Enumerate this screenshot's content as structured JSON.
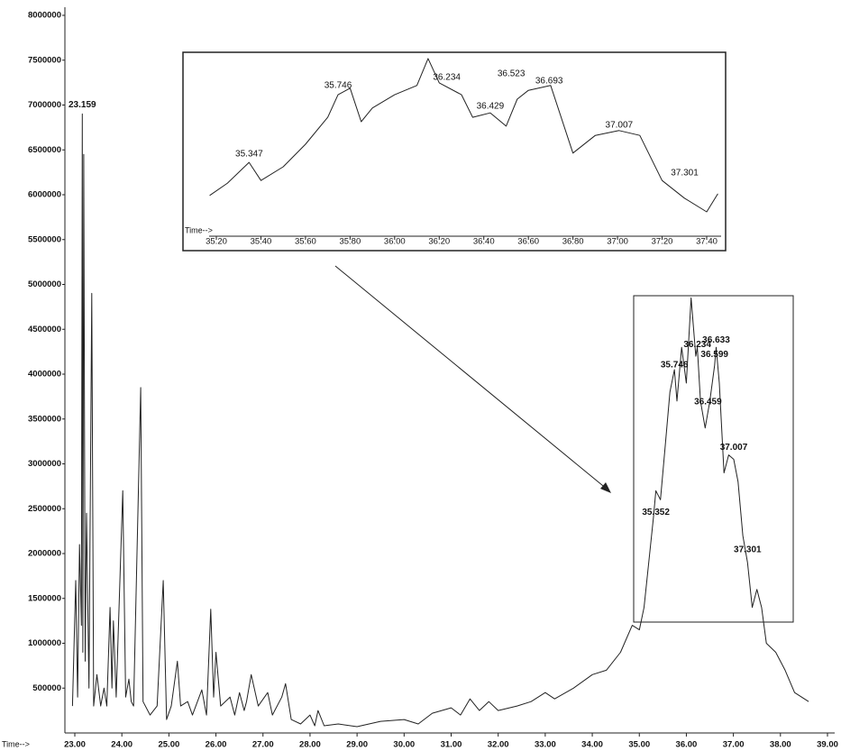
{
  "chart_data": [
    {
      "type": "line",
      "x_label": "Time-->",
      "x": [
        22.95,
        23.02,
        23.06,
        23.1,
        23.14,
        23.159,
        23.17,
        23.19,
        23.22,
        23.25,
        23.3,
        23.36,
        23.4,
        23.47,
        23.55,
        23.62,
        23.68,
        23.75,
        23.79,
        23.82,
        23.88,
        24.02,
        24.08,
        24.15,
        24.2,
        24.25,
        24.4,
        24.45,
        24.6,
        24.75,
        24.88,
        24.95,
        25.05,
        25.18,
        25.25,
        25.4,
        25.5,
        25.7,
        25.8,
        25.89,
        25.95,
        26.0,
        26.1,
        26.3,
        26.4,
        26.5,
        26.6,
        26.65,
        26.75,
        26.9,
        27.1,
        27.2,
        27.4,
        27.48,
        27.6,
        27.8,
        28.0,
        28.1,
        28.17,
        28.3,
        28.6,
        29.0,
        29.5,
        30.0,
        30.3,
        30.6,
        31.0,
        31.2,
        31.4,
        31.6,
        31.8,
        32.0,
        32.4,
        32.7,
        33.0,
        33.2,
        33.6,
        34.0,
        34.3,
        34.6,
        34.85,
        35.0,
        35.1,
        35.2,
        35.3,
        35.352,
        35.45,
        35.55,
        35.65,
        35.746,
        35.8,
        35.9,
        36.0,
        36.1,
        36.2,
        36.234,
        36.3,
        36.4,
        36.5,
        36.6,
        36.633,
        36.7,
        36.8,
        36.9,
        37.007,
        37.1,
        37.2,
        37.301,
        37.4,
        37.5,
        37.6,
        37.7,
        37.9,
        38.1,
        38.3,
        38.6
      ],
      "series": [
        {
          "color": "#222222",
          "values": [
            300000,
            1700000,
            400000,
            2100000,
            1200000,
            6900000,
            900000,
            6450000,
            800000,
            2450000,
            500000,
            4900000,
            300000,
            650000,
            300000,
            500000,
            300000,
            1400000,
            500000,
            1250000,
            400000,
            2700000,
            400000,
            600000,
            350000,
            300000,
            3850000,
            350000,
            200000,
            300000,
            1700000,
            150000,
            300000,
            800000,
            300000,
            350000,
            200000,
            480000,
            200000,
            1380000,
            400000,
            900000,
            300000,
            400000,
            200000,
            450000,
            250000,
            350000,
            650000,
            300000,
            450000,
            200000,
            400000,
            550000,
            150000,
            100000,
            200000,
            80000,
            250000,
            80000,
            100000,
            70000,
            130000,
            150000,
            100000,
            220000,
            280000,
            200000,
            380000,
            250000,
            350000,
            250000,
            300000,
            350000,
            450000,
            380000,
            500000,
            650000,
            700000,
            900000,
            1200000,
            1150000,
            1400000,
            1900000,
            2400000,
            2700000,
            2600000,
            3200000,
            3800000,
            4050000,
            3700000,
            4300000,
            3900000,
            4850000,
            4200000,
            4300000,
            3700000,
            3400000,
            3700000,
            4100000,
            4300000,
            3900000,
            2900000,
            3100000,
            3050000,
            2800000,
            2200000,
            1900000,
            1400000,
            1600000,
            1400000,
            1000000,
            900000,
            700000,
            450000,
            350000
          ]
        }
      ],
      "xlim": [
        23,
        39
      ],
      "xticks": [
        {
          "value": 23,
          "label": "23.00"
        },
        {
          "value": 24,
          "label": "24.00"
        },
        {
          "value": 25,
          "label": "25.00"
        },
        {
          "value": 26,
          "label": "26.00"
        },
        {
          "value": 27,
          "label": "27.00"
        },
        {
          "value": 28,
          "label": "28.00"
        },
        {
          "value": 29,
          "label": "29.00"
        },
        {
          "value": 30,
          "label": "30.00"
        },
        {
          "value": 31,
          "label": "31.00"
        },
        {
          "value": 32,
          "label": "32.00"
        },
        {
          "value": 33,
          "label": "33.00"
        },
        {
          "value": 34,
          "label": "34.00"
        },
        {
          "value": 35,
          "label": "35.00"
        },
        {
          "value": 36,
          "label": "36.00"
        },
        {
          "value": 37,
          "label": "37.00"
        },
        {
          "value": 38,
          "label": "38.00"
        },
        {
          "value": 39,
          "label": "39.00"
        }
      ],
      "ylim": [
        0,
        8000000
      ],
      "yticks": [
        500000,
        1000000,
        1500000,
        2000000,
        2500000,
        3000000,
        3500000,
        4000000,
        4500000,
        5000000,
        5500000,
        6000000,
        6500000,
        7000000,
        7500000,
        8000000
      ],
      "annotations": [
        {
          "label": "23.159",
          "x": 23.159,
          "y": 7000000
        },
        {
          "label": "35.352",
          "x": 35.352,
          "y": 2460000
        },
        {
          "label": "35.746",
          "x": 35.746,
          "y": 4100000
        },
        {
          "label": "36.234",
          "x": 36.234,
          "y": 4330000
        },
        {
          "label": "36.633",
          "x": 36.633,
          "y": 4380000
        },
        {
          "label": "36.599",
          "x": 36.599,
          "y": 4220000
        },
        {
          "label": "36.459",
          "x": 36.459,
          "y": 3690000
        },
        {
          "label": "37.007",
          "x": 37.007,
          "y": 3180000
        },
        {
          "label": "37.301",
          "x": 37.301,
          "y": 2040000
        }
      ]
    },
    {
      "type": "line",
      "x_label": "Time-->",
      "x": [
        35.17,
        35.25,
        35.347,
        35.4,
        35.5,
        35.6,
        35.7,
        35.746,
        35.8,
        35.85,
        35.9,
        36.0,
        36.1,
        36.15,
        36.2,
        36.3,
        36.35,
        36.429,
        36.5,
        36.55,
        36.6,
        36.7,
        36.8,
        36.9,
        37.007,
        37.1,
        37.2,
        37.3,
        37.4,
        37.45
      ],
      "series": [
        {
          "color": "#222222",
          "values": [
            1840000,
            2120000,
            2590000,
            2180000,
            2490000,
            3000000,
            3610000,
            4120000,
            4270000,
            3510000,
            3820000,
            4120000,
            4330000,
            4940000,
            4390000,
            4120000,
            3610000,
            3710000,
            3410000,
            4020000,
            4220000,
            4330000,
            2800000,
            3200000,
            3310000,
            3200000,
            2180000,
            1780000,
            1470000,
            1880000
          ]
        }
      ],
      "xlim": [
        35.2,
        37.4
      ],
      "xticks": [
        {
          "value": 35.2,
          "label": "35.20"
        },
        {
          "value": 35.4,
          "label": "35.40"
        },
        {
          "value": 35.6,
          "label": "35.60"
        },
        {
          "value": 35.8,
          "label": "35.80"
        },
        {
          "value": 36.0,
          "label": "36.00"
        },
        {
          "value": 36.2,
          "label": "36.20"
        },
        {
          "value": 36.4,
          "label": "36.40"
        },
        {
          "value": 36.6,
          "label": "36.60"
        },
        {
          "value": 36.8,
          "label": "36.80"
        },
        {
          "value": 37.0,
          "label": "37.00"
        },
        {
          "value": 37.2,
          "label": "37.20"
        },
        {
          "value": 37.4,
          "label": "37.40"
        }
      ],
      "ylim": [
        1000000,
        5000000
      ],
      "annotations": [
        {
          "label": "35.347",
          "x": 35.347,
          "y": 2780000
        },
        {
          "label": "35.746",
          "x": 35.746,
          "y": 4330000
        },
        {
          "label": "36.234",
          "x": 36.234,
          "y": 4510000
        },
        {
          "label": "36.429",
          "x": 36.429,
          "y": 3860000
        },
        {
          "label": "36.523",
          "x": 36.523,
          "y": 4590000
        },
        {
          "label": "36.693",
          "x": 36.693,
          "y": 4430000
        },
        {
          "label": "37.007",
          "x": 37.007,
          "y": 3430000
        },
        {
          "label": "37.301",
          "x": 37.301,
          "y": 2350000
        }
      ]
    }
  ]
}
